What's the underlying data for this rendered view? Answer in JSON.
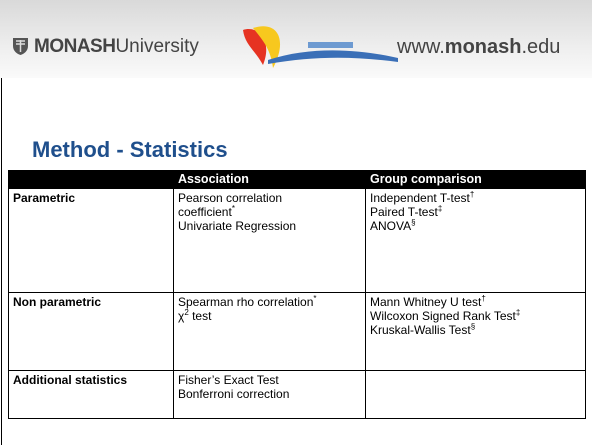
{
  "header": {
    "logo_bold": "MONASH",
    "logo_light": "University",
    "url_prefix": "www.",
    "url_bold": "monash",
    "url_suffix": ".edu"
  },
  "title": "Method - Statistics",
  "table": {
    "columns": [
      "",
      "Association",
      "Group comparison"
    ],
    "rows": [
      [
        [
          {
            "text": "Parametric"
          }
        ],
        [
          {
            "text": "Pearson correlation"
          },
          {
            "text": "coefficient",
            "sup": "*"
          },
          {
            "text": "Univariate Regression"
          }
        ],
        [
          {
            "text": "Independent T-test",
            "sup": "†"
          },
          {
            "text": "Paired T-test",
            "sup": "‡"
          },
          {
            "text": "ANOVA",
            "sup": "§"
          }
        ]
      ],
      [
        [
          {
            "text": "Non parametric"
          }
        ],
        [
          {
            "text": "Spearman rho correlation",
            "sup": "*"
          },
          {
            "text": "χ",
            "sup": "2",
            "after": " test"
          }
        ],
        [
          {
            "text": "Mann Whitney U test",
            "sup": "†"
          },
          {
            "text": "Wilcoxon Signed Rank Test",
            "sup": "‡"
          },
          {
            "text": "Kruskal-Wallis Test",
            "sup": "§"
          }
        ]
      ],
      [
        [
          {
            "text": "Additional statistics"
          }
        ],
        [
          {
            "text": "Fisher’s Exact Test"
          },
          {
            "text": "Bonferroni correction"
          }
        ],
        []
      ]
    ]
  }
}
